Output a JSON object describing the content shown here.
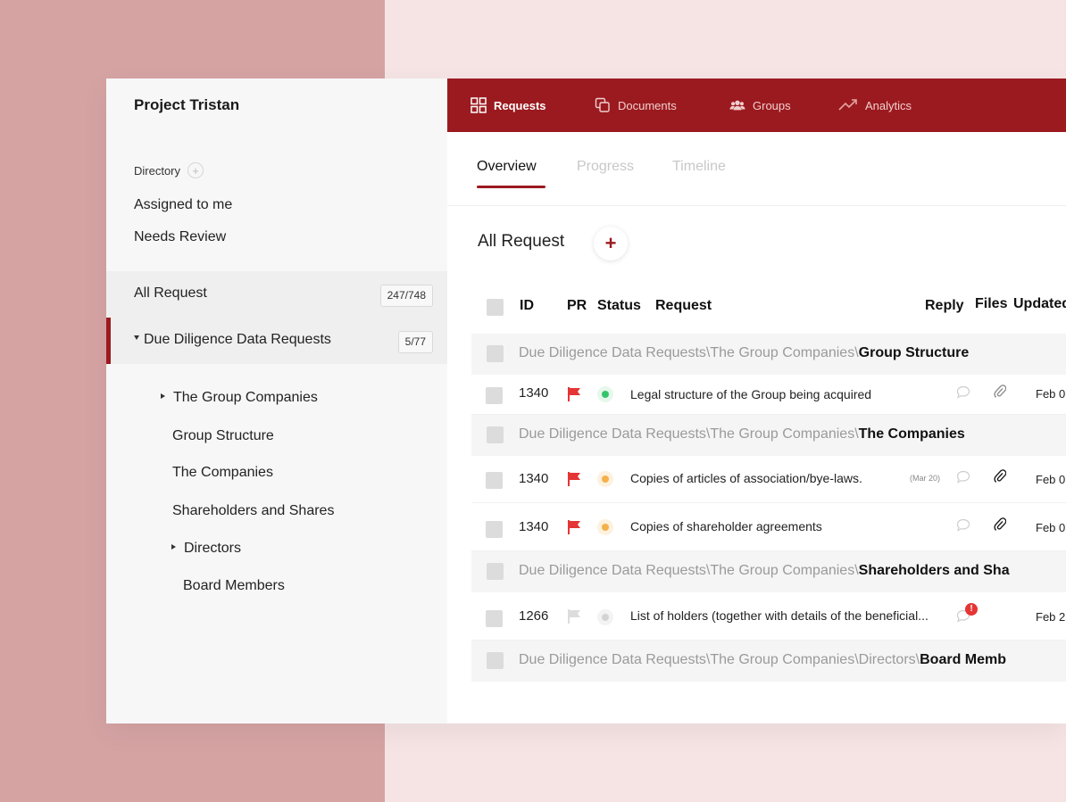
{
  "sidebar": {
    "project_title": "Project Tristan",
    "directory_label": "Directory",
    "directory_add": "+",
    "assigned": "Assigned to me",
    "needs_review": "Needs Review",
    "all_request": {
      "label": "All Request",
      "badge": "247/748"
    },
    "due_diligence": {
      "label": "Due Diligence Data Requests",
      "badge": "5/77"
    },
    "tree": [
      "The Group Companies",
      "Group Structure",
      "The Companies",
      "Shareholders and Shares",
      "Directors",
      "Board Members"
    ]
  },
  "nav": {
    "items": [
      {
        "label": "Requests",
        "icon": "grid-icon"
      },
      {
        "label": "Documents",
        "icon": "copy-icon"
      },
      {
        "label": "Groups",
        "icon": "users-icon"
      },
      {
        "label": "Analytics",
        "icon": "trend-icon"
      }
    ]
  },
  "subtabs": [
    "Overview",
    "Progress",
    "Timeline"
  ],
  "section": {
    "title": "All Request",
    "add": "+"
  },
  "table": {
    "headers": {
      "id": "ID",
      "pr": "PR",
      "status": "Status",
      "request": "Request",
      "reply": "Reply",
      "files": "Files",
      "updated": "Updated"
    },
    "path_prefix": "Due Diligence Data Requests",
    "sep": "\\",
    "rows": [
      {
        "type": "group",
        "path": "The Group Companies",
        "leaf": "Group Structure"
      },
      {
        "type": "data",
        "id": "1340",
        "flag": "#e53535",
        "status": "#34c46b",
        "request": "Legal structure of the Group being acquired",
        "reply_date": "",
        "attach": true,
        "updated": "Feb 0"
      },
      {
        "type": "group",
        "path": "The Group Companies",
        "leaf": "The Companies"
      },
      {
        "type": "data",
        "id": "1340",
        "flag": "#e53535",
        "status": "#f6b04a",
        "request": "Copies of articles of association/bye-laws.",
        "reply_date": "(Mar 20)",
        "attach": true,
        "updated": "Feb 0"
      },
      {
        "type": "data",
        "id": "1340",
        "flag": "#e53535",
        "status": "#f6b04a",
        "request": "Copies of shareholder agreements",
        "reply_date": "",
        "attach": true,
        "updated": "Feb 0"
      },
      {
        "type": "group",
        "path": "The Group Companies",
        "leaf": "Shareholders and Sha"
      },
      {
        "type": "data",
        "id": "1266",
        "flag": "#dcdcdc",
        "status": "#d4d4d4",
        "request": "List of holders (together with details of the beneficial...",
        "reply_date": "",
        "attach": false,
        "alert": "!",
        "updated": "Feb 2"
      },
      {
        "type": "group",
        "path": "The Group Companies\\Directors",
        "leaf": "Board Memb"
      }
    ]
  },
  "colors": {
    "accent": "#9b1a1f",
    "flag_red": "#e53535"
  }
}
